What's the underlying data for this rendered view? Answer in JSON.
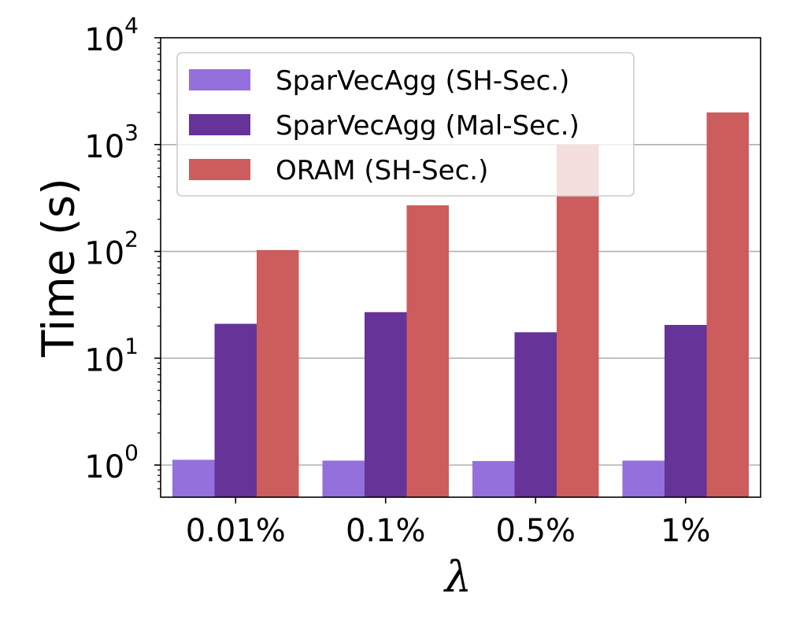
{
  "chart_data": {
    "type": "bar",
    "title": "",
    "xlabel": "λ",
    "ylabel": "Time (s)",
    "yscale": "log",
    "ylim": [
      0.5,
      10000
    ],
    "yticks": [
      {
        "value": 1,
        "base": "10",
        "exp": "0"
      },
      {
        "value": 10,
        "base": "10",
        "exp": "1"
      },
      {
        "value": 100,
        "base": "10",
        "exp": "2"
      },
      {
        "value": 1000,
        "base": "10",
        "exp": "3"
      },
      {
        "value": 10000,
        "base": "10",
        "exp": "4"
      }
    ],
    "grid": "y-major",
    "legend_position": "top-left",
    "categories": [
      "0.01%",
      "0.1%",
      "0.5%",
      "1%"
    ],
    "series": [
      {
        "name": "SparVecAgg (SH-Sec.)",
        "color": "#9370db",
        "values": [
          1.12,
          1.1,
          1.09,
          1.1
        ]
      },
      {
        "name": "SparVecAgg (Mal-Sec.)",
        "color": "#663399",
        "values": [
          21,
          27,
          17.5,
          20.5
        ]
      },
      {
        "name": "ORAM (SH-Sec.)",
        "color": "#cd5c5c",
        "values": [
          103,
          270,
          1000,
          2000
        ]
      }
    ]
  }
}
